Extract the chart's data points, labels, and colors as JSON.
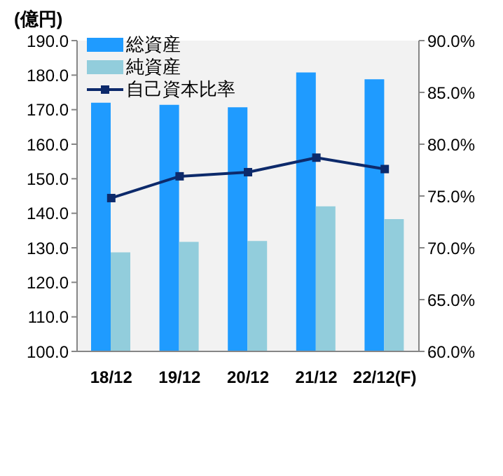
{
  "chart_data": {
    "type": "bar",
    "ylabel": "(億円)",
    "categories": [
      "18/12",
      "19/12",
      "20/12",
      "21/12",
      "22/12(F)"
    ],
    "series": [
      {
        "name": "総資産",
        "color": "#1f9bff",
        "values": [
          172.0,
          171.4,
          170.7,
          180.8,
          178.8
        ]
      },
      {
        "name": "純資産",
        "color": "#92cddc",
        "values": [
          128.7,
          131.7,
          132.0,
          142.0,
          138.3
        ]
      },
      {
        "name": "自己資本比率",
        "type": "line",
        "axis": "y2",
        "color": "#0d2a6b",
        "marker": "square",
        "values": [
          74.8,
          76.9,
          77.3,
          78.7,
          77.6
        ]
      }
    ],
    "ylim": [
      100,
      190
    ],
    "yticks": [
      {
        "value": 100,
        "label": "100.0"
      },
      {
        "value": 110,
        "label": "110.0"
      },
      {
        "value": 120,
        "label": "120.0"
      },
      {
        "value": 130,
        "label": "130.0"
      },
      {
        "value": 140,
        "label": "140.0"
      },
      {
        "value": 150,
        "label": "150.0"
      },
      {
        "value": 160,
        "label": "160.0"
      },
      {
        "value": 170,
        "label": "170.0"
      },
      {
        "value": 180,
        "label": "180.0"
      },
      {
        "value": 190,
        "label": "190.0"
      }
    ],
    "y2lim": [
      60,
      90
    ],
    "y2ticks": [
      {
        "value": 60,
        "label": "60.0%"
      },
      {
        "value": 65,
        "label": "65.0%"
      },
      {
        "value": 70,
        "label": "70.0%"
      },
      {
        "value": 75,
        "label": "75.0%"
      },
      {
        "value": 80,
        "label": "80.0%"
      },
      {
        "value": 85,
        "label": "85.0%"
      },
      {
        "value": 90,
        "label": "90.0%"
      }
    ],
    "grid": false,
    "legend": "top left"
  }
}
